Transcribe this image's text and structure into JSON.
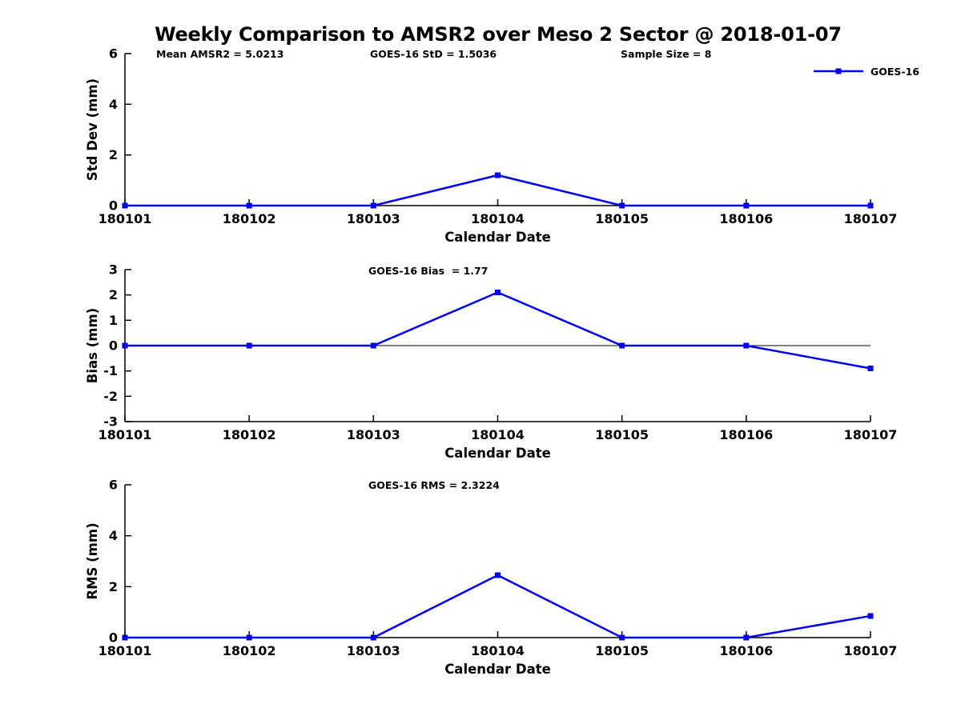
{
  "figure": {
    "title": "Weekly Comparison to AMSR2 over Meso 2 Sector @ 2018-01-07"
  },
  "legend": {
    "label": "GOES-16"
  },
  "colors": {
    "series": "#0000EE",
    "axis": "#000000",
    "text": "#000000"
  },
  "stats": {
    "mean_amsr2": 5.0213,
    "goes16_std": 1.5036,
    "sample_size": 8,
    "goes16_bias": 1.77,
    "goes16_rms": 2.3224
  },
  "chart_data": [
    {
      "type": "line",
      "panel": "std-dev",
      "categories": [
        "180101",
        "180102",
        "180103",
        "180104",
        "180105",
        "180106",
        "180107"
      ],
      "series": [
        {
          "name": "GOES-16",
          "values": [
            0,
            0,
            0,
            1.2,
            0,
            0,
            0
          ]
        }
      ],
      "xlabel": "Calendar Date",
      "ylabel": "Std Dev (mm)",
      "ylim": [
        0,
        6
      ],
      "yticks": [
        0,
        2,
        4,
        6
      ],
      "zero_line": false,
      "grid": false,
      "legend_position": "top-right",
      "annotations": [
        "Mean AMSR2 = 5.0213",
        "GOES-16 StD = 1.5036",
        "Sample Size = 8"
      ]
    },
    {
      "type": "line",
      "panel": "bias",
      "categories": [
        "180101",
        "180102",
        "180103",
        "180104",
        "180105",
        "180106",
        "180107"
      ],
      "series": [
        {
          "name": "GOES-16",
          "values": [
            0,
            0,
            0,
            2.1,
            0,
            0,
            -0.9
          ]
        }
      ],
      "xlabel": "Calendar Date",
      "ylabel": "Bias (mm)",
      "ylim": [
        -3,
        3
      ],
      "yticks": [
        3,
        2,
        1,
        0,
        -1,
        -2,
        -3
      ],
      "zero_line": true,
      "grid": false,
      "annotations": [
        "GOES-16 Bias  = 1.77"
      ]
    },
    {
      "type": "line",
      "panel": "rms",
      "categories": [
        "180101",
        "180102",
        "180103",
        "180104",
        "180105",
        "180106",
        "180107"
      ],
      "series": [
        {
          "name": "GOES-16",
          "values": [
            0,
            0,
            0,
            2.45,
            0,
            0,
            0.85
          ]
        }
      ],
      "xlabel": "Calendar Date",
      "ylabel": "RMS (mm)",
      "ylim": [
        0,
        6
      ],
      "yticks": [
        0,
        2,
        4,
        6
      ],
      "zero_line": false,
      "grid": false,
      "annotations": [
        "GOES-16 RMS = 2.3224"
      ]
    }
  ]
}
